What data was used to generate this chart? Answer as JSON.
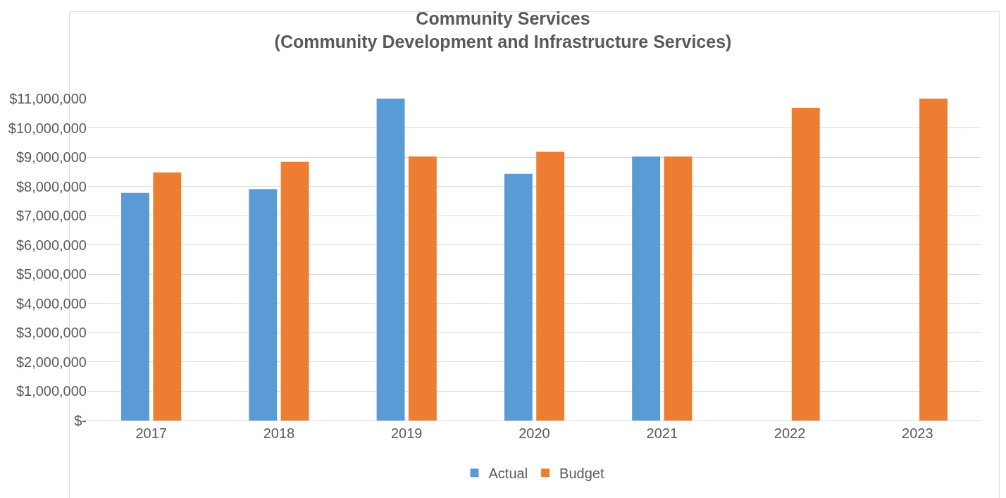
{
  "chart_data": {
    "type": "bar",
    "title": "Community Services\n(Community Development and Infrastructure Services)",
    "categories": [
      "2017",
      "2018",
      "2019",
      "2020",
      "2021",
      "2022",
      "2023"
    ],
    "series": [
      {
        "name": "Actual",
        "color": "#5b9bd5",
        "values": [
          7780000,
          7910000,
          11000000,
          8430000,
          9020000,
          null,
          null
        ]
      },
      {
        "name": "Budget",
        "color": "#ed7d31",
        "values": [
          8480000,
          8840000,
          9020000,
          9180000,
          9020000,
          10690000,
          11000000
        ]
      }
    ],
    "ylim": [
      0,
      11000000
    ],
    "yticks": [
      {
        "value": 0,
        "label": "$-"
      },
      {
        "value": 1000000,
        "label": "$1,000,000"
      },
      {
        "value": 2000000,
        "label": "$2,000,000"
      },
      {
        "value": 3000000,
        "label": "$3,000,000"
      },
      {
        "value": 4000000,
        "label": "$4,000,000"
      },
      {
        "value": 5000000,
        "label": "$5,000,000"
      },
      {
        "value": 6000000,
        "label": "$6,000,000"
      },
      {
        "value": 7000000,
        "label": "$7,000,000"
      },
      {
        "value": 8000000,
        "label": "$8,000,000"
      },
      {
        "value": 9000000,
        "label": "$9,000,000"
      },
      {
        "value": 10000000,
        "label": "$10,000,000"
      },
      {
        "value": 11000000,
        "label": "$11,000,000"
      }
    ],
    "grid": "y",
    "legend": "bottom"
  }
}
